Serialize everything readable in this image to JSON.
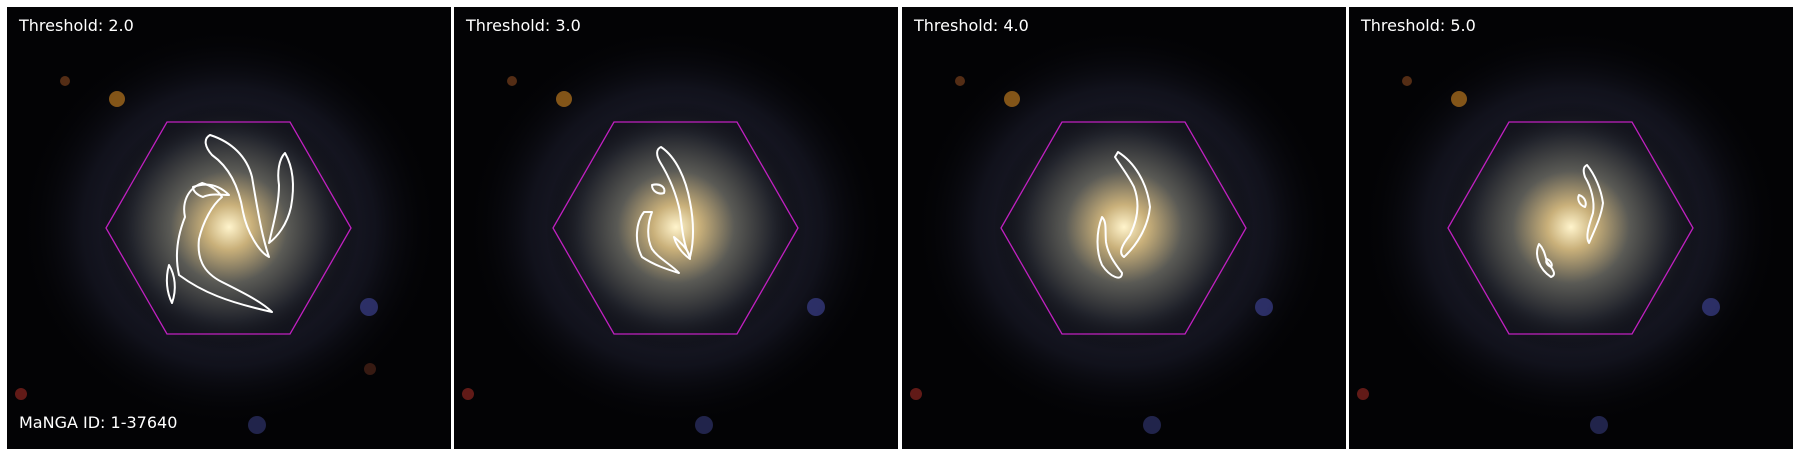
{
  "panels": [
    {
      "threshold_label": "Threshold: 2.0"
    },
    {
      "threshold_label": "Threshold: 3.0"
    },
    {
      "threshold_label": "Threshold: 4.0"
    },
    {
      "threshold_label": "Threshold: 5.0"
    }
  ],
  "manga_id_label": "MaNGA ID: 1-37640",
  "colors": {
    "background": "#030305",
    "hexagon": "#c020c0",
    "contour": "#ffffff",
    "galaxy_core": "#fff4cc"
  }
}
